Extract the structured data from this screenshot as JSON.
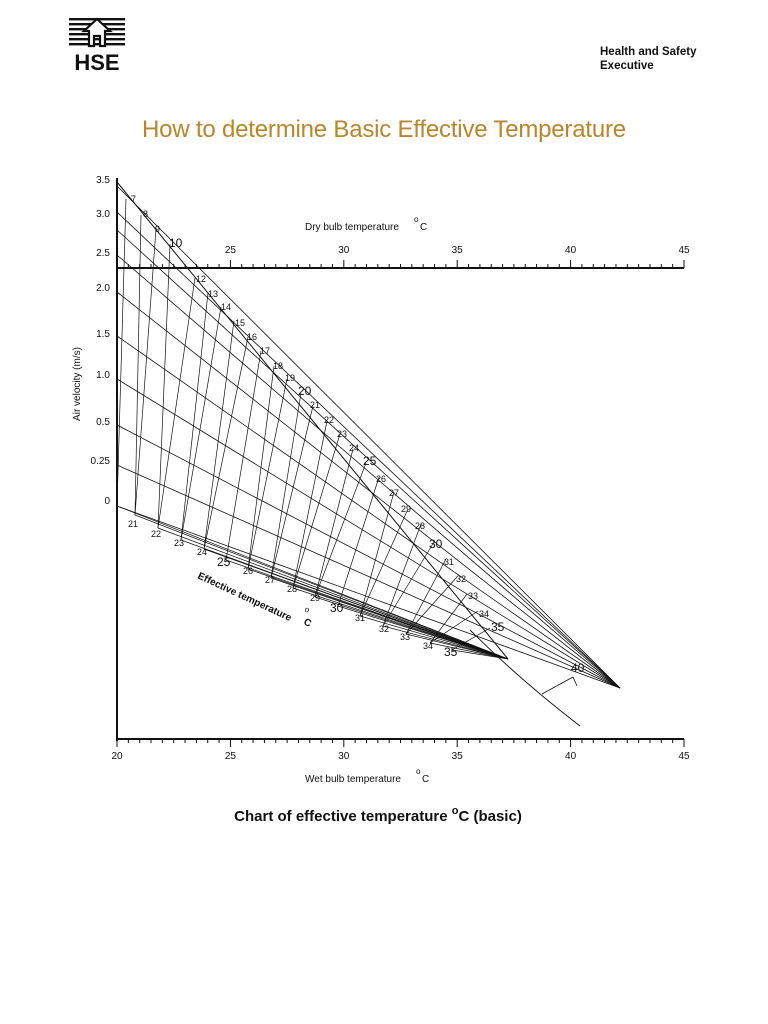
{
  "header": {
    "org_line1": "Health and Safety",
    "org_line2": "Executive",
    "logo_text": "HSE",
    "title": "How to determine Basic Effective Temperature"
  },
  "chart_data": {
    "type": "nomogram",
    "dry_bulb_axis": {
      "label": "Dry bulb temperature",
      "unit": "oC",
      "range": [
        20,
        45
      ],
      "tick_labels": [
        "25",
        "30",
        "35",
        "40",
        "45"
      ],
      "minor_step": 0.5
    },
    "wet_bulb_axis": {
      "label": "Wet bulb temperature",
      "unit": "oC",
      "range": [
        20,
        45
      ],
      "tick_labels": [
        "20",
        "25",
        "30",
        "35",
        "40",
        "45"
      ],
      "minor_step": 0.5
    },
    "air_velocity_axis": {
      "label": "Air velocity (m/s)",
      "tick_labels": [
        "3.5",
        "3.0",
        "2.5",
        "2.0",
        "1.5",
        "1.0",
        "0.5",
        "0.25",
        "0"
      ]
    },
    "effective_temperature": {
      "label": "Effective temperature",
      "unit": "oC",
      "upper_labels": [
        "7",
        "8",
        "9",
        "10",
        "12",
        "13",
        "14",
        "15",
        "16",
        "17",
        "18",
        "19",
        "20",
        "21",
        "22",
        "23",
        "24",
        "25",
        "26",
        "27",
        "29",
        "28",
        "30",
        "31",
        "32",
        "33",
        "34",
        "35",
        "40"
      ],
      "lower_labels": [
        "21",
        "22",
        "23",
        "24",
        "25",
        "26",
        "27",
        "28",
        "29",
        "30",
        "31",
        "32",
        "33",
        "34",
        "35"
      ]
    },
    "caption": "Chart of effective temperature",
    "caption_unit": "o",
    "caption_tail": "C (basic)"
  }
}
